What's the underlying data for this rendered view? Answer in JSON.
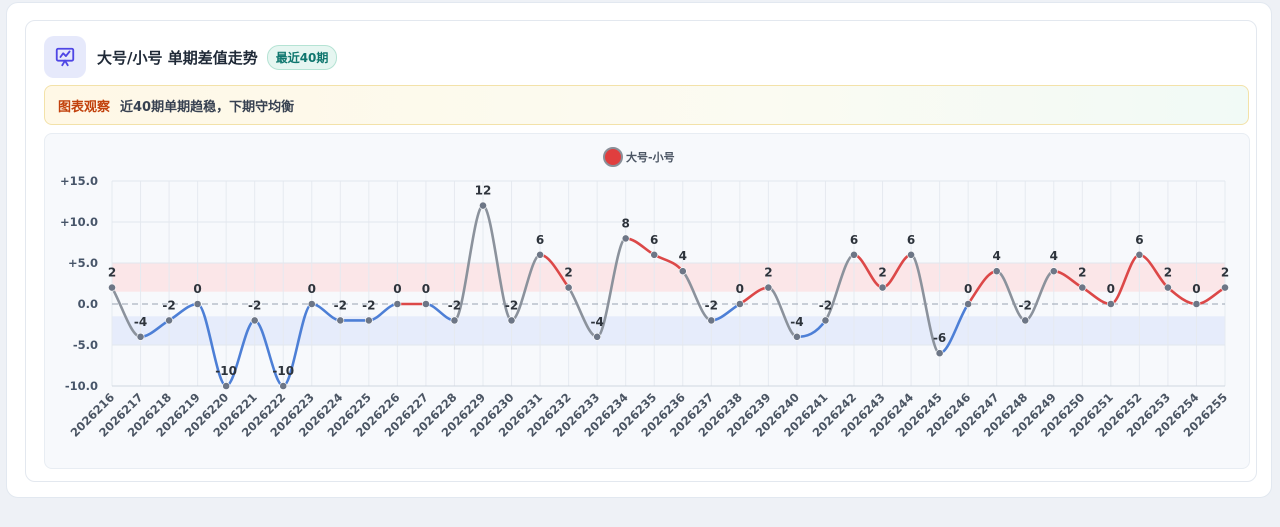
{
  "header": {
    "title": "大号/小号 单期差值走势",
    "badge": "最近40期"
  },
  "insight": {
    "tag": "图表观察",
    "text": "近40期单期趋稳，下期守均衡"
  },
  "colors": {
    "up": "#dc4848",
    "down": "#4d7fd6",
    "neutral": "#8b929c",
    "upBand": "#fbe3e6",
    "downBand": "#e3eafb",
    "accent": "#4f46e5"
  },
  "chart_data": {
    "type": "line",
    "title": "",
    "xlabel": "",
    "ylabel": "",
    "ylim": [
      -10,
      15
    ],
    "yticks": [
      15,
      10,
      5,
      0,
      -5,
      -10
    ],
    "ytick_labels": [
      "+15.0",
      "+10.0",
      "+5.0",
      "0.0",
      "-5.0",
      "-10.0"
    ],
    "grid": true,
    "legend": "top-center",
    "categories": [
      "2026216",
      "2026217",
      "2026218",
      "2026219",
      "2026220",
      "2026221",
      "2026222",
      "2026223",
      "2026224",
      "2026225",
      "2026226",
      "2026227",
      "2026228",
      "2026229",
      "2026230",
      "2026231",
      "2026232",
      "2026233",
      "2026234",
      "2026235",
      "2026236",
      "2026237",
      "2026238",
      "2026239",
      "2026240",
      "2026241",
      "2026242",
      "2026243",
      "2026244",
      "2026245",
      "2026246",
      "2026247",
      "2026248",
      "2026249",
      "2026250",
      "2026251",
      "2026252",
      "2026253",
      "2026254",
      "2026255"
    ],
    "series": [
      {
        "name": "大号-小号",
        "values": [
          2,
          -4,
          -2,
          0,
          -10,
          -2,
          -10,
          0,
          -2,
          -2,
          0,
          0,
          -2,
          12,
          -2,
          6,
          2,
          -4,
          8,
          6,
          4,
          -2,
          0,
          2,
          -4,
          -2,
          6,
          2,
          6,
          -6,
          0,
          4,
          -2,
          4,
          2,
          0,
          6,
          2,
          0,
          2
        ]
      }
    ],
    "bands": [
      {
        "from": 1.5,
        "to": 5,
        "color": "up"
      },
      {
        "from": -5,
        "to": -1.5,
        "color": "down"
      }
    ]
  }
}
